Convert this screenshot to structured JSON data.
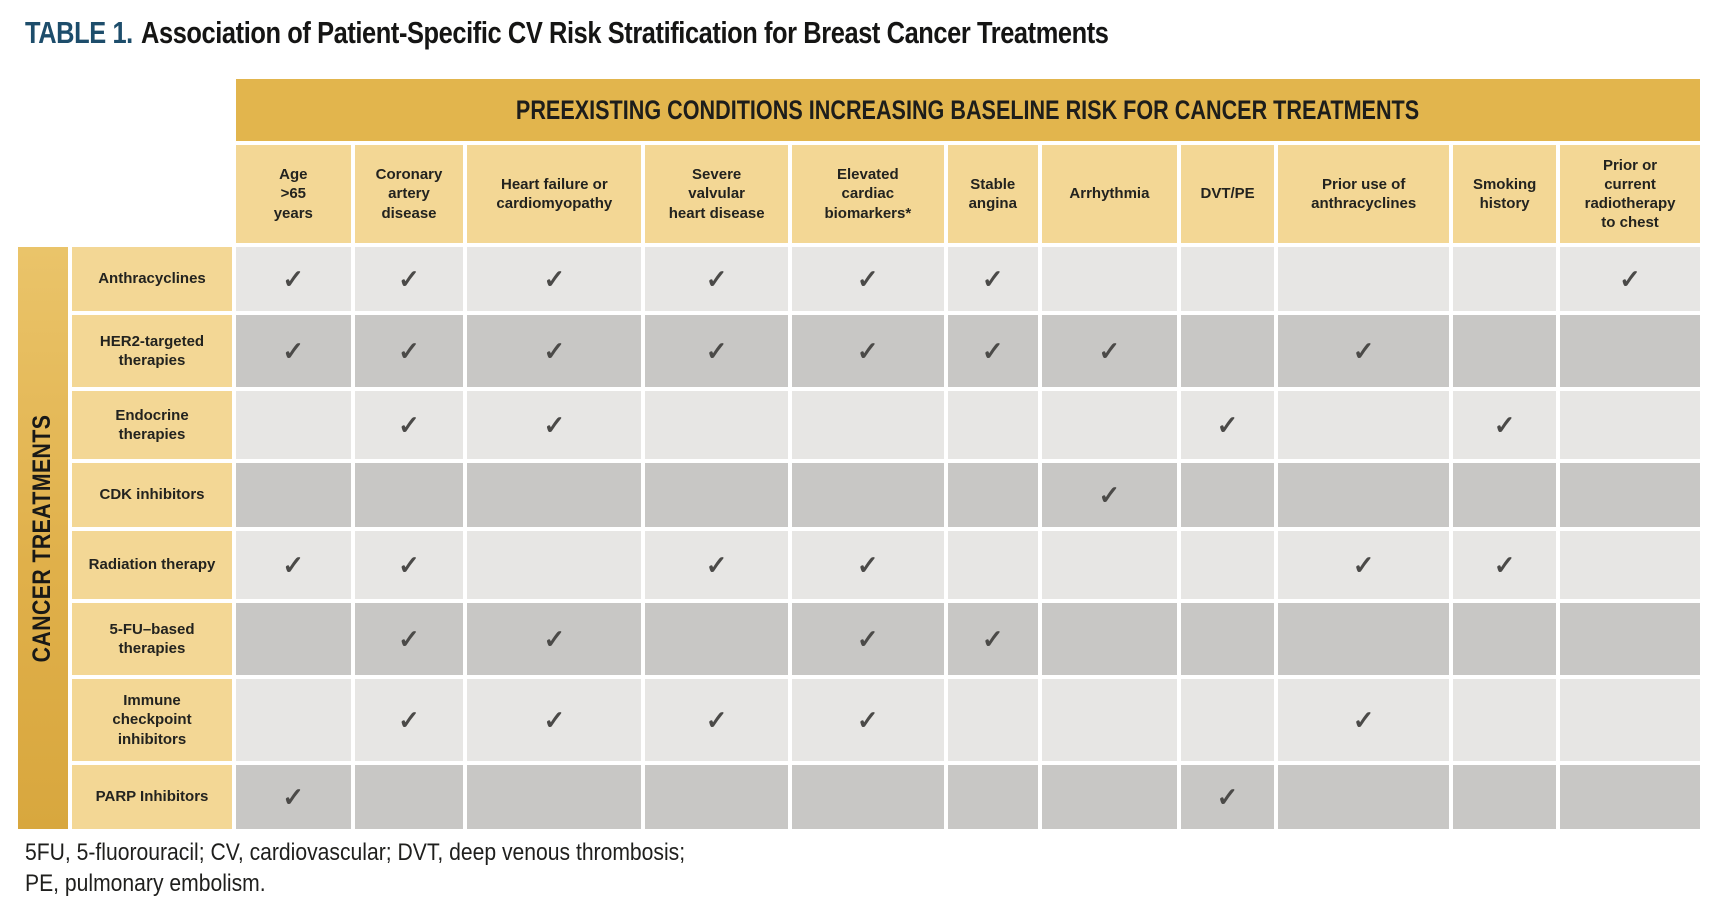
{
  "title": {
    "label": "TABLE 1.",
    "text": "Association of Patient-Specific CV Risk Stratification for Breast Cancer Treatments"
  },
  "table": {
    "banner": "PREEXISTING CONDITIONS INCREASING BASELINE RISK FOR CANCER TREATMENTS",
    "side_banner": "CANCER TREATMENTS",
    "columns": [
      "Age\n>65\nyears",
      "Coronary\nartery\ndisease",
      "Heart failure or\ncardiomyopathy",
      "Severe\nvalvular\nheart disease",
      "Elevated\ncardiac\nbiomarkers*",
      "Stable\nangina",
      "Arrhythmia",
      "DVT/PE",
      "Prior use of\nanthracyclines",
      "Smoking\nhistory",
      "Prior or\ncurrent\nradiotherapy\nto chest"
    ],
    "rows": [
      {
        "label": "Anthracyclines",
        "checks": [
          1,
          1,
          1,
          1,
          1,
          1,
          0,
          0,
          0,
          0,
          1
        ]
      },
      {
        "label": "HER2-targeted\ntherapies",
        "checks": [
          1,
          1,
          1,
          1,
          1,
          1,
          1,
          0,
          1,
          0,
          0
        ]
      },
      {
        "label": "Endocrine\ntherapies",
        "checks": [
          0,
          1,
          1,
          0,
          0,
          0,
          0,
          1,
          0,
          1,
          0
        ]
      },
      {
        "label": "CDK inhibitors",
        "checks": [
          0,
          0,
          0,
          0,
          0,
          0,
          1,
          0,
          0,
          0,
          0
        ]
      },
      {
        "label": "Radiation therapy",
        "checks": [
          1,
          1,
          0,
          1,
          1,
          0,
          0,
          0,
          1,
          1,
          0
        ]
      },
      {
        "label": "5-FU–based\ntherapies",
        "checks": [
          0,
          1,
          1,
          0,
          1,
          1,
          0,
          0,
          0,
          0,
          0
        ]
      },
      {
        "label": "Immune\ncheckpoint\ninhibitors",
        "checks": [
          0,
          1,
          1,
          1,
          1,
          0,
          0,
          0,
          1,
          0,
          0
        ]
      },
      {
        "label": "PARP Inhibitors",
        "checks": [
          1,
          0,
          0,
          0,
          0,
          0,
          0,
          1,
          0,
          0,
          0
        ]
      }
    ],
    "check_glyph": "✓"
  },
  "footnote": {
    "line1": "5FU, 5-fluorouracil; CV, cardiovascular; DVT, deep venous thrombosis;",
    "line2": "PE, pulmonary embolism."
  },
  "colors": {
    "banner_gold": "#e2b54d",
    "header_gold": "#f3d795",
    "row_light_gray": "#e7e6e4",
    "row_dark_gray": "#c8c7c5",
    "check_color": "#4b4a48",
    "title_blue": "#1d4d6b"
  }
}
